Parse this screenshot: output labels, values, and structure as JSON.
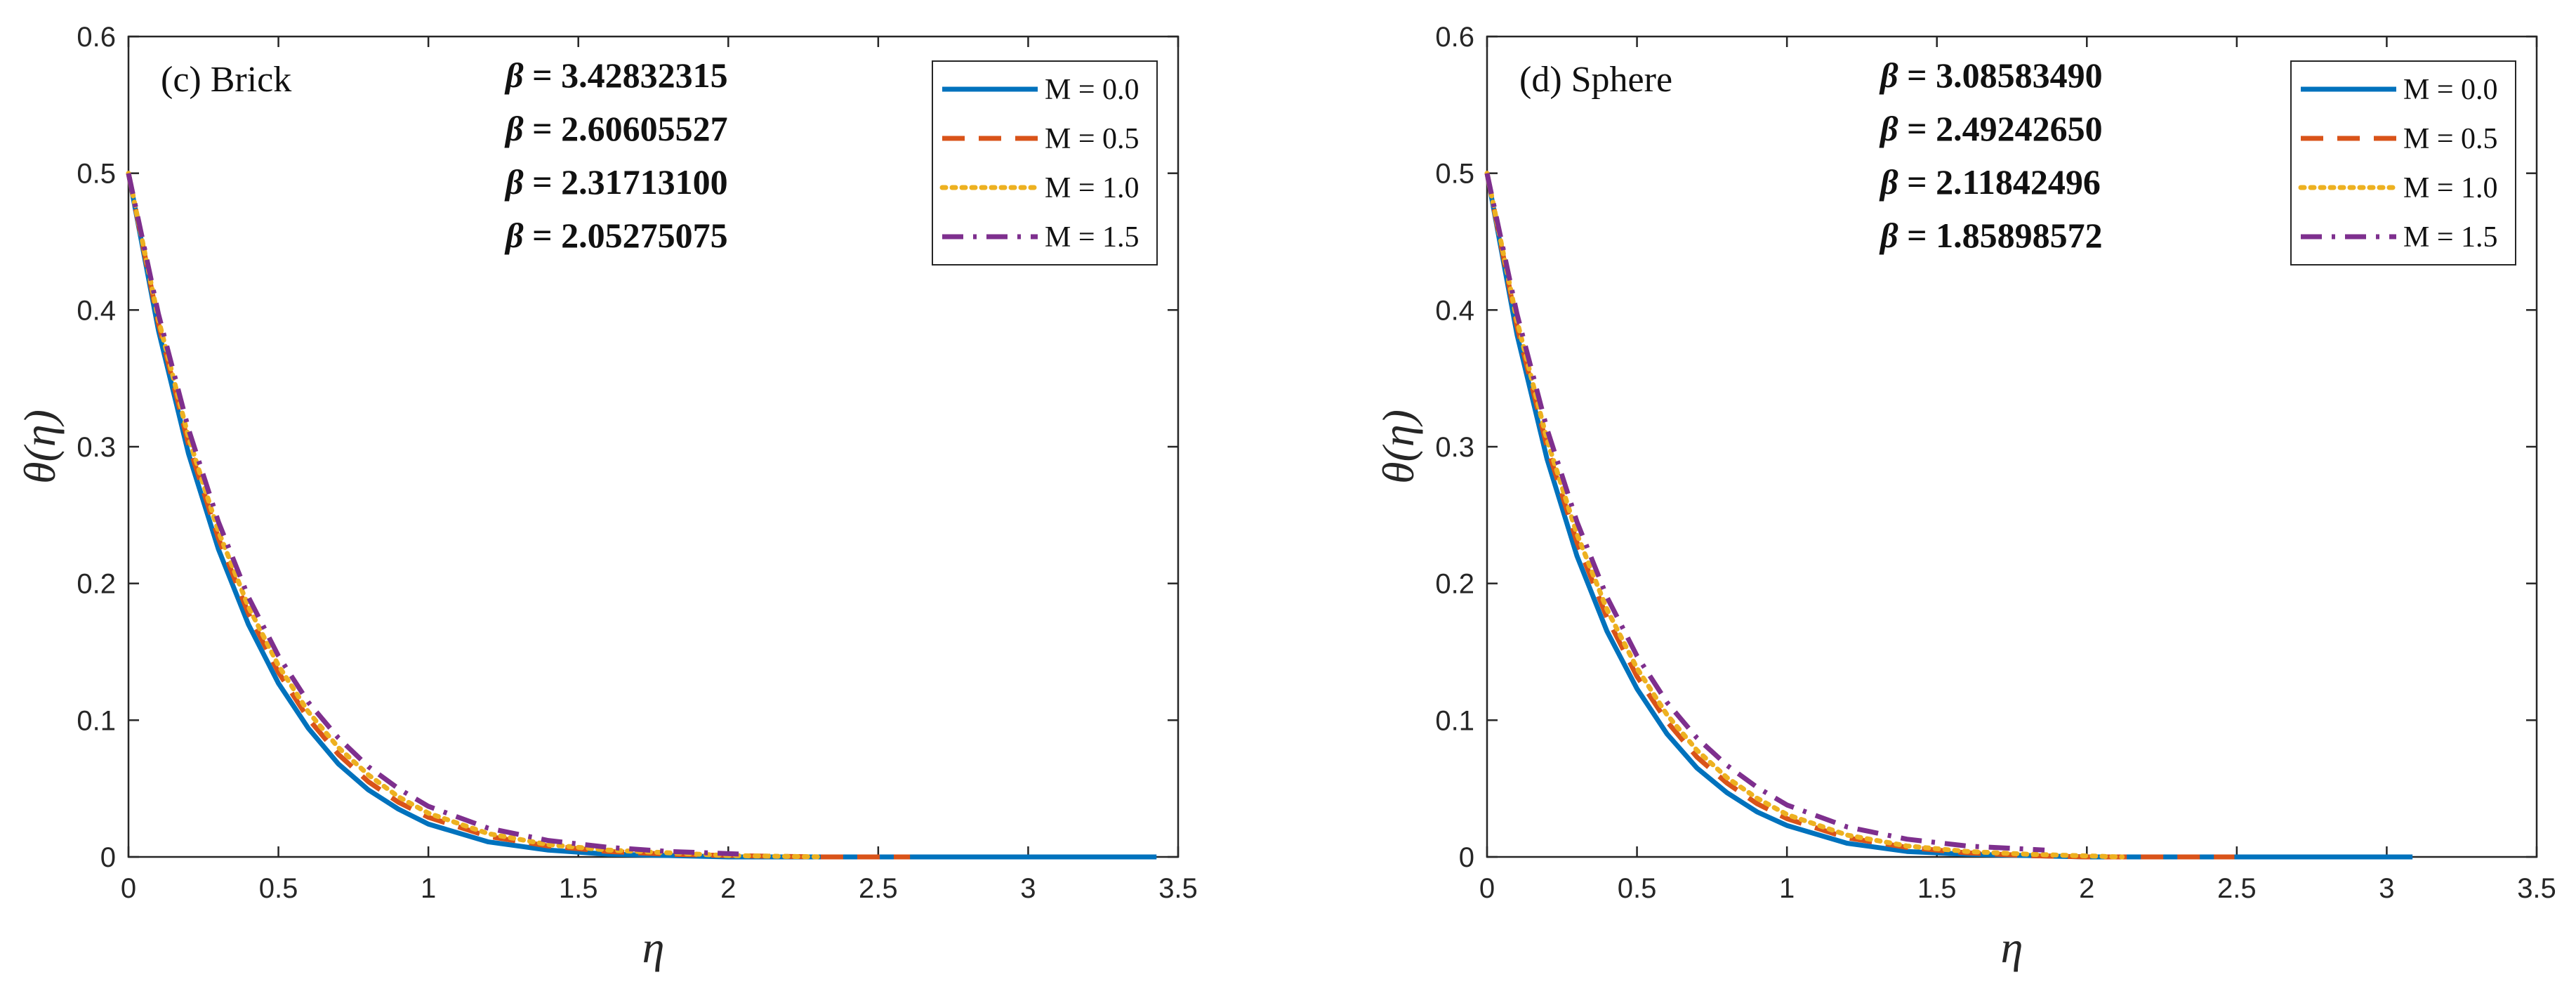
{
  "chart_data": [
    {
      "type": "line",
      "panel_label": "(c) Brick",
      "xlabel": "η",
      "ylabel": "θ(η)",
      "xlim": [
        0,
        3.5
      ],
      "ylim": [
        0,
        0.6
      ],
      "xticks": [
        "0",
        "0.5",
        "1",
        "1.5",
        "2",
        "2.5",
        "3",
        "3.5"
      ],
      "yticks": [
        "0",
        "0.1",
        "0.2",
        "0.3",
        "0.4",
        "0.5",
        "0.6"
      ],
      "legend_position": "top-right",
      "beta_annotations": [
        {
          "symbol": "β",
          "text": " = 3.42832315"
        },
        {
          "symbol": "β",
          "text": " = 2.60605527"
        },
        {
          "symbol": "β",
          "text": " = 2.31713100"
        },
        {
          "symbol": "β",
          "text": " = 2.05275075"
        }
      ],
      "series": [
        {
          "name": "M = 0.0",
          "color": "#0072BD",
          "style": "solid",
          "x_end": 3.428,
          "x": [
            0,
            0.1,
            0.2,
            0.3,
            0.4,
            0.5,
            0.6,
            0.7,
            0.8,
            0.9,
            1.0,
            1.2,
            1.4,
            1.6,
            1.8,
            2.0,
            2.5,
            3.0,
            3.428
          ],
          "y": [
            0.5,
            0.385,
            0.295,
            0.225,
            0.17,
            0.127,
            0.094,
            0.068,
            0.049,
            0.035,
            0.024,
            0.011,
            0.005,
            0.002,
            0.001,
            0.0,
            0.0,
            0.0,
            0.0
          ]
        },
        {
          "name": "M = 0.5",
          "color": "#D95319",
          "style": "dashed",
          "x_end": 2.606,
          "x": [
            0,
            0.1,
            0.2,
            0.3,
            0.4,
            0.5,
            0.6,
            0.7,
            0.8,
            0.9,
            1.0,
            1.2,
            1.4,
            1.6,
            1.8,
            2.0,
            2.3,
            2.606
          ],
          "y": [
            0.5,
            0.39,
            0.302,
            0.233,
            0.178,
            0.135,
            0.101,
            0.075,
            0.055,
            0.04,
            0.029,
            0.015,
            0.008,
            0.004,
            0.002,
            0.001,
            0.0,
            0.0
          ]
        },
        {
          "name": "M = 1.0",
          "color": "#EDB120",
          "style": "dotted",
          "x_end": 2.317,
          "x": [
            0,
            0.1,
            0.2,
            0.3,
            0.4,
            0.5,
            0.6,
            0.7,
            0.8,
            0.9,
            1.0,
            1.2,
            1.4,
            1.6,
            1.8,
            2.0,
            2.317
          ],
          "y": [
            0.5,
            0.393,
            0.307,
            0.238,
            0.183,
            0.14,
            0.106,
            0.08,
            0.06,
            0.044,
            0.032,
            0.017,
            0.009,
            0.005,
            0.003,
            0.001,
            0.0
          ]
        },
        {
          "name": "M = 1.5",
          "color": "#7E2F8E",
          "style": "dashdot",
          "x_end": 2.053,
          "x": [
            0,
            0.1,
            0.2,
            0.3,
            0.4,
            0.5,
            0.6,
            0.7,
            0.8,
            0.9,
            1.0,
            1.2,
            1.4,
            1.6,
            1.8,
            2.053
          ],
          "y": [
            0.5,
            0.397,
            0.313,
            0.245,
            0.19,
            0.147,
            0.113,
            0.087,
            0.066,
            0.05,
            0.037,
            0.021,
            0.012,
            0.007,
            0.004,
            0.002
          ]
        }
      ]
    },
    {
      "type": "line",
      "panel_label": "(d) Sphere",
      "xlabel": "η",
      "ylabel": "θ(η)",
      "xlim": [
        0,
        3.5
      ],
      "ylim": [
        0,
        0.6
      ],
      "xticks": [
        "0",
        "0.5",
        "1",
        "1.5",
        "2",
        "2.5",
        "3",
        "3.5"
      ],
      "yticks": [
        "0",
        "0.1",
        "0.2",
        "0.3",
        "0.4",
        "0.5",
        "0.6"
      ],
      "legend_position": "top-right",
      "beta_annotations": [
        {
          "symbol": "β",
          "text": " = 3.08583490"
        },
        {
          "symbol": "β",
          "text": " = 2.49242650"
        },
        {
          "symbol": "β",
          "text": " = 2.11842496"
        },
        {
          "symbol": "β",
          "text": " = 1.85898572"
        }
      ],
      "series": [
        {
          "name": "M = 0.0",
          "color": "#0072BD",
          "style": "solid",
          "x_end": 3.086,
          "x": [
            0,
            0.1,
            0.2,
            0.3,
            0.4,
            0.5,
            0.6,
            0.7,
            0.8,
            0.9,
            1.0,
            1.2,
            1.4,
            1.6,
            1.8,
            2.0,
            2.5,
            3.086
          ],
          "y": [
            0.5,
            0.382,
            0.291,
            0.22,
            0.165,
            0.123,
            0.09,
            0.065,
            0.047,
            0.033,
            0.023,
            0.01,
            0.004,
            0.002,
            0.001,
            0.0,
            0.0,
            0.0
          ]
        },
        {
          "name": "M = 0.5",
          "color": "#D95319",
          "style": "dashed",
          "x_end": 2.492,
          "x": [
            0,
            0.1,
            0.2,
            0.3,
            0.4,
            0.5,
            0.6,
            0.7,
            0.8,
            0.9,
            1.0,
            1.2,
            1.4,
            1.6,
            1.8,
            2.0,
            2.492
          ],
          "y": [
            0.5,
            0.388,
            0.3,
            0.23,
            0.175,
            0.132,
            0.099,
            0.073,
            0.054,
            0.039,
            0.028,
            0.014,
            0.007,
            0.003,
            0.001,
            0.0,
            0.0
          ]
        },
        {
          "name": "M = 1.0",
          "color": "#EDB120",
          "style": "dotted",
          "x_end": 2.118,
          "x": [
            0,
            0.1,
            0.2,
            0.3,
            0.4,
            0.5,
            0.6,
            0.7,
            0.8,
            0.9,
            1.0,
            1.2,
            1.4,
            1.6,
            1.8,
            2.118
          ],
          "y": [
            0.5,
            0.392,
            0.305,
            0.236,
            0.181,
            0.138,
            0.104,
            0.078,
            0.058,
            0.043,
            0.031,
            0.016,
            0.008,
            0.004,
            0.002,
            0.0
          ]
        },
        {
          "name": "M = 1.5",
          "color": "#7E2F8E",
          "style": "dashdot",
          "x_end": 1.859,
          "x": [
            0,
            0.1,
            0.2,
            0.3,
            0.4,
            0.5,
            0.6,
            0.7,
            0.8,
            0.9,
            1.0,
            1.2,
            1.4,
            1.6,
            1.859
          ],
          "y": [
            0.5,
            0.397,
            0.313,
            0.245,
            0.19,
            0.147,
            0.113,
            0.087,
            0.067,
            0.051,
            0.038,
            0.022,
            0.013,
            0.008,
            0.005
          ]
        }
      ]
    }
  ]
}
